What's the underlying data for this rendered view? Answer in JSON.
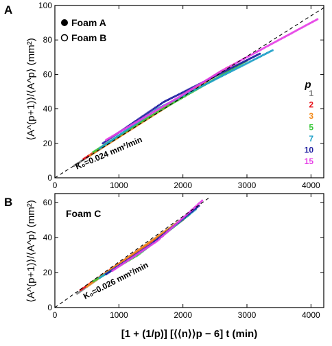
{
  "colors": {
    "p1": "#808080",
    "p2": "#e8141c",
    "p3": "#f28c1e",
    "p5": "#3cc83c",
    "p7": "#1ea0c8",
    "p10": "#1e1ea0",
    "p15": "#e640e6"
  },
  "chart_data": [
    {
      "panel_label": "A",
      "type": "scatter",
      "xlim": [
        0,
        4200
      ],
      "ylim": [
        0,
        100
      ],
      "xticks": [
        0,
        1000,
        2000,
        3000,
        4000
      ],
      "yticks": [
        0,
        20,
        40,
        60,
        80,
        100
      ],
      "ylabel": "⟨A^(p+1)⟩/⟨A^p⟩ (mm²)",
      "legend": {
        "placement": "top-left",
        "entries": [
          {
            "label": "Foam A",
            "marker": "filled-circle"
          },
          {
            "label": "Foam B",
            "marker": "open-circle"
          }
        ]
      },
      "p_legend": {
        "title": "p",
        "items": [
          "1",
          "2",
          "3",
          "5",
          "7",
          "10",
          "15"
        ]
      },
      "fit_line": {
        "slope": 0.0235,
        "intercept": 0,
        "x_range": [
          0,
          4200
        ],
        "style": "dashed"
      },
      "annotation": "K₀=0.024 mm²/min",
      "series": [
        {
          "p": "1",
          "color_key": "p1",
          "x": [
            300,
            2600
          ],
          "y": [
            7,
            62
          ]
        },
        {
          "p": "2",
          "color_key": "p2",
          "x": [
            450,
            2700
          ],
          "y": [
            11,
            64
          ]
        },
        {
          "p": "3",
          "color_key": "p3",
          "x": [
            550,
            2800
          ],
          "y": [
            13,
            66
          ]
        },
        {
          "p": "5",
          "color_key": "p5",
          "x": [
            600,
            1500,
            3000
          ],
          "y": [
            15,
            36,
            68
          ]
        },
        {
          "p": "7",
          "color_key": "p7",
          "x": [
            700,
            1600,
            3400
          ],
          "y": [
            17,
            40,
            74
          ]
        },
        {
          "p": "10",
          "color_key": "p10",
          "x": [
            750,
            1700,
            3200
          ],
          "y": [
            20,
            44,
            72
          ]
        },
        {
          "p": "15",
          "color_key": "p15",
          "x": [
            800,
            1900,
            2600,
            4100
          ],
          "y": [
            22,
            46,
            62,
            92
          ]
        }
      ]
    },
    {
      "panel_label": "B",
      "type": "scatter",
      "xlim": [
        0,
        4200
      ],
      "ylim": [
        0,
        65
      ],
      "xticks": [
        0,
        1000,
        2000,
        3000,
        4000
      ],
      "yticks": [
        0,
        20,
        40,
        60
      ],
      "xlabel": "[1 + (1/p)] [⟨⟨n⟩⟩p − 6] t (min)",
      "ylabel": "⟨A^(p+1)⟩/⟨A^p⟩ (mm²)",
      "legend": {
        "entries": [
          {
            "label": "Foam C"
          }
        ]
      },
      "fit_line": {
        "slope": 0.026,
        "intercept": 0,
        "x_range": [
          0,
          2400
        ],
        "style": "dashed"
      },
      "annotation": "K₀=0.026 mm²/min",
      "series": [
        {
          "p": "1",
          "color_key": "p1",
          "x": [
            350,
            1900
          ],
          "y": [
            8,
            48
          ]
        },
        {
          "p": "2",
          "color_key": "p2",
          "x": [
            400,
            2000
          ],
          "y": [
            10,
            50
          ]
        },
        {
          "p": "3",
          "color_key": "p3",
          "x": [
            500,
            2050
          ],
          "y": [
            12,
            52
          ]
        },
        {
          "p": "5",
          "color_key": "p5",
          "x": [
            600,
            1300,
            2100
          ],
          "y": [
            15,
            30,
            53
          ]
        },
        {
          "p": "7",
          "color_key": "p7",
          "x": [
            700,
            1400,
            2200
          ],
          "y": [
            17,
            33,
            56
          ]
        },
        {
          "p": "10",
          "color_key": "p10",
          "x": [
            800,
            1500,
            2250
          ],
          "y": [
            19,
            36,
            58
          ]
        },
        {
          "p": "15",
          "color_key": "p15",
          "x": [
            900,
            1600,
            2300
          ],
          "y": [
            21,
            38,
            61
          ]
        }
      ]
    }
  ]
}
